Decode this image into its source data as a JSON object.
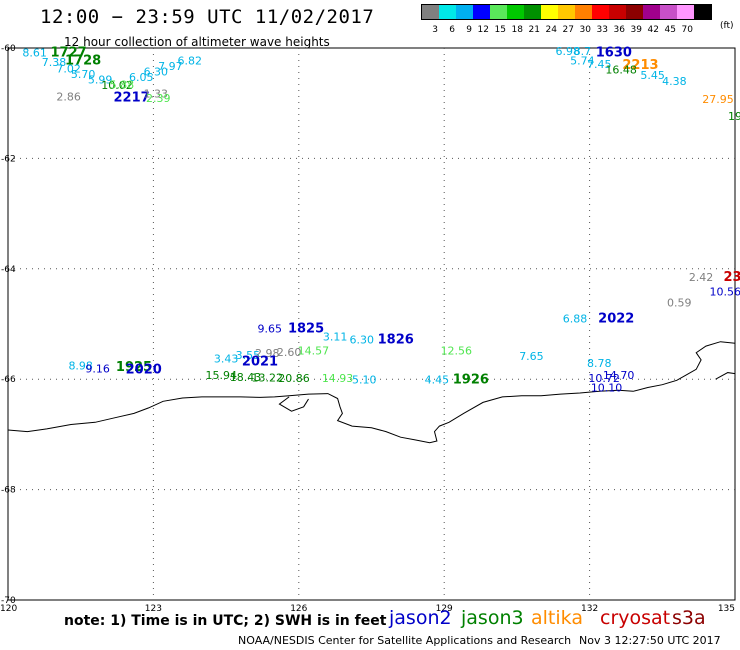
{
  "title": "12:00 − 23:59 UTC 11/02/2017",
  "subtitle": "12 hour collection of altimeter wave heights",
  "legend": {
    "colors": [
      "#808080",
      "#00e8e8",
      "#00b0f0",
      "#0000ff",
      "#5ae85a",
      "#00c800",
      "#009000",
      "#ffff00",
      "#ffc800",
      "#ff8000",
      "#ff0000",
      "#c80000",
      "#8c0000",
      "#a0008c",
      "#c850c8",
      "#ff96ff",
      "#000000"
    ],
    "ticks": [
      "3",
      "6",
      "9",
      "12",
      "15",
      "18",
      "21",
      "24",
      "27",
      "30",
      "33",
      "36",
      "39",
      "42",
      "45",
      "70"
    ],
    "unit": "(ft)"
  },
  "map": {
    "lon_range": [
      120,
      135
    ],
    "lat_range": [
      -70,
      -60
    ],
    "lon_labels": [
      "120",
      "123",
      "126",
      "129",
      "132",
      "135"
    ],
    "lat_labels": [
      "-60",
      "-62",
      "-64",
      "-66",
      "-68",
      "-70"
    ]
  },
  "colors": {
    "jason2": "#0000c8",
    "jason3": "#008000",
    "altika": "#ff8c00",
    "cryosat": "#c80000",
    "s3a": "#8b0000",
    "gray": "#808080",
    "cyan": "#00b4e6",
    "lightgreen": "#50e650"
  },
  "observations": [
    {
      "text": "8.61",
      "lon": 120.55,
      "lat": -60.15,
      "color": "cyan",
      "kind": "obs"
    },
    {
      "text": "1727",
      "lon": 121.25,
      "lat": -60.15,
      "color": "jason3",
      "kind": "time"
    },
    {
      "text": "7.38",
      "lon": 120.95,
      "lat": -60.33,
      "color": "cyan",
      "kind": "obs"
    },
    {
      "text": "1728",
      "lon": 121.55,
      "lat": -60.3,
      "color": "jason3",
      "kind": "time"
    },
    {
      "text": "7.02",
      "lon": 121.25,
      "lat": -60.44,
      "color": "cyan",
      "kind": "obs"
    },
    {
      "text": "6.82",
      "lon": 123.75,
      "lat": -60.3,
      "color": "cyan",
      "kind": "obs"
    },
    {
      "text": "7.97",
      "lon": 123.35,
      "lat": -60.4,
      "color": "cyan",
      "kind": "obs"
    },
    {
      "text": "6.30",
      "lon": 123.05,
      "lat": -60.5,
      "color": "cyan",
      "kind": "obs"
    },
    {
      "text": "5.70",
      "lon": 121.55,
      "lat": -60.54,
      "color": "cyan",
      "kind": "obs"
    },
    {
      "text": "5.99",
      "lon": 121.9,
      "lat": -60.64,
      "color": "cyan",
      "kind": "obs"
    },
    {
      "text": "6.05",
      "lon": 122.75,
      "lat": -60.6,
      "color": "cyan",
      "kind": "obs"
    },
    {
      "text": "10.02",
      "lon": 122.25,
      "lat": -60.74,
      "color": "jason3",
      "kind": "obs"
    },
    {
      "text": "5.88",
      "lon": 122.35,
      "lat": -60.73,
      "color": "lightgreen",
      "kind": "obs"
    },
    {
      "text": "2.86",
      "lon": 121.25,
      "lat": -60.95,
      "color": "gray",
      "kind": "obs"
    },
    {
      "text": "2217",
      "lon": 122.55,
      "lat": -60.97,
      "color": "jason2",
      "kind": "time"
    },
    {
      "text": "1.33",
      "lon": 123.05,
      "lat": -60.9,
      "color": "gray",
      "kind": "obs"
    },
    {
      "text": "2.39",
      "lon": 123.1,
      "lat": -60.98,
      "color": "lightgreen",
      "kind": "obs"
    },
    {
      "text": "6.98",
      "lon": 131.55,
      "lat": -60.13,
      "color": "cyan",
      "kind": "obs"
    },
    {
      "text": "8.7",
      "lon": 131.85,
      "lat": -60.13,
      "color": "cyan",
      "kind": "obs"
    },
    {
      "text": "1630",
      "lon": 132.5,
      "lat": -60.15,
      "color": "jason2",
      "kind": "time"
    },
    {
      "text": "5.74",
      "lon": 131.85,
      "lat": -60.3,
      "color": "cyan",
      "kind": "obs"
    },
    {
      "text": "7.45",
      "lon": 132.2,
      "lat": -60.36,
      "color": "cyan",
      "kind": "obs"
    },
    {
      "text": "2213",
      "lon": 133.05,
      "lat": -60.38,
      "color": "altika",
      "kind": "time"
    },
    {
      "text": "16.48",
      "lon": 132.65,
      "lat": -60.46,
      "color": "jason3",
      "kind": "obs"
    },
    {
      "text": "5.45",
      "lon": 133.3,
      "lat": -60.56,
      "color": "cyan",
      "kind": "obs"
    },
    {
      "text": "4.38",
      "lon": 133.75,
      "lat": -60.67,
      "color": "cyan",
      "kind": "obs"
    },
    {
      "text": "27.95",
      "lon": 134.65,
      "lat": -61.0,
      "color": "altika",
      "kind": "obs"
    },
    {
      "text": "19",
      "lon": 135.0,
      "lat": -61.3,
      "color": "jason3",
      "kind": "obs"
    },
    {
      "text": "2.42",
      "lon": 134.3,
      "lat": -64.22,
      "color": "gray",
      "kind": "obs"
    },
    {
      "text": "23",
      "lon": 134.95,
      "lat": -64.22,
      "color": "cryosat",
      "kind": "time"
    },
    {
      "text": "10.56",
      "lon": 134.8,
      "lat": -64.48,
      "color": "jason2",
      "kind": "obs"
    },
    {
      "text": "0.59",
      "lon": 133.85,
      "lat": -64.68,
      "color": "gray",
      "kind": "obs"
    },
    {
      "text": "6.88",
      "lon": 131.7,
      "lat": -64.97,
      "color": "cyan",
      "kind": "obs"
    },
    {
      "text": "2022",
      "lon": 132.55,
      "lat": -64.97,
      "color": "jason2",
      "kind": "time"
    },
    {
      "text": "9.65",
      "lon": 125.4,
      "lat": -65.15,
      "color": "jason2",
      "kind": "obs"
    },
    {
      "text": "1825",
      "lon": 126.15,
      "lat": -65.15,
      "color": "jason2",
      "kind": "time"
    },
    {
      "text": "3.11",
      "lon": 126.75,
      "lat": -65.3,
      "color": "cyan",
      "kind": "obs"
    },
    {
      "text": "6.30",
      "lon": 127.3,
      "lat": -65.35,
      "color": "cyan",
      "kind": "obs"
    },
    {
      "text": "1826",
      "lon": 128.0,
      "lat": -65.35,
      "color": "jason2",
      "kind": "time"
    },
    {
      "text": "12.56",
      "lon": 129.25,
      "lat": -65.55,
      "color": "lightgreen",
      "kind": "obs"
    },
    {
      "text": "7.65",
      "lon": 130.8,
      "lat": -65.65,
      "color": "cyan",
      "kind": "obs"
    },
    {
      "text": "8.78",
      "lon": 132.2,
      "lat": -65.78,
      "color": "cyan",
      "kind": "obs"
    },
    {
      "text": "3.43",
      "lon": 124.5,
      "lat": -65.7,
      "color": "cyan",
      "kind": "obs"
    },
    {
      "text": "3.55",
      "lon": 124.95,
      "lat": -65.63,
      "color": "cyan",
      "kind": "obs"
    },
    {
      "text": "2.98",
      "lon": 125.35,
      "lat": -65.6,
      "color": "gray",
      "kind": "obs"
    },
    {
      "text": "2.60",
      "lon": 125.8,
      "lat": -65.58,
      "color": "gray",
      "kind": "obs"
    },
    {
      "text": "14.57",
      "lon": 126.3,
      "lat": -65.55,
      "color": "lightgreen",
      "kind": "obs"
    },
    {
      "text": "2021",
      "lon": 125.2,
      "lat": -65.75,
      "color": "jason2",
      "kind": "time"
    },
    {
      "text": "8.98",
      "lon": 121.5,
      "lat": -65.82,
      "color": "cyan",
      "kind": "obs"
    },
    {
      "text": "9.16",
      "lon": 121.85,
      "lat": -65.88,
      "color": "jason2",
      "kind": "obs"
    },
    {
      "text": "1925",
      "lon": 122.6,
      "lat": -65.85,
      "color": "jason3",
      "kind": "time"
    },
    {
      "text": "2020",
      "lon": 122.8,
      "lat": -65.9,
      "color": "jason2",
      "kind": "time"
    },
    {
      "text": "15.94",
      "lon": 124.4,
      "lat": -66.0,
      "color": "jason3",
      "kind": "obs"
    },
    {
      "text": "18.43",
      "lon": 124.9,
      "lat": -66.03,
      "color": "jason3",
      "kind": "obs"
    },
    {
      "text": "13.22",
      "lon": 125.35,
      "lat": -66.04,
      "color": "jason3",
      "kind": "obs"
    },
    {
      "text": "20.86",
      "lon": 125.9,
      "lat": -66.05,
      "color": "jason3",
      "kind": "obs"
    },
    {
      "text": "14.93",
      "lon": 126.8,
      "lat": -66.05,
      "color": "lightgreen",
      "kind": "obs"
    },
    {
      "text": "5.10",
      "lon": 127.35,
      "lat": -66.08,
      "color": "cyan",
      "kind": "obs"
    },
    {
      "text": "4.45",
      "lon": 128.85,
      "lat": -66.08,
      "color": "cyan",
      "kind": "obs"
    },
    {
      "text": "1926",
      "lon": 129.55,
      "lat": -66.08,
      "color": "jason3",
      "kind": "time"
    },
    {
      "text": "10.72",
      "lon": 132.3,
      "lat": -66.05,
      "color": "jason2",
      "kind": "obs"
    },
    {
      "text": "14.70",
      "lon": 132.6,
      "lat": -66.0,
      "color": "jason2",
      "kind": "obs"
    },
    {
      "text": "10.10",
      "lon": 132.35,
      "lat": -66.22,
      "color": "jason2",
      "kind": "obs"
    }
  ],
  "footer": {
    "note": "note:  1) Time is in UTC;  2) SWH is in feet",
    "satellites": [
      {
        "name": "jason2",
        "color": "jason2"
      },
      {
        "name": "jason3",
        "color": "jason3"
      },
      {
        "name": "altika",
        "color": "altika"
      },
      {
        "name": "cryosat",
        "color": "cryosat"
      },
      {
        "name": "s3a",
        "color": "s3a"
      }
    ],
    "credit": "NOAA/NESDIS Center for Satellite Applications and Research",
    "generated": "Nov  3 12:27:50 UTC 2017"
  }
}
